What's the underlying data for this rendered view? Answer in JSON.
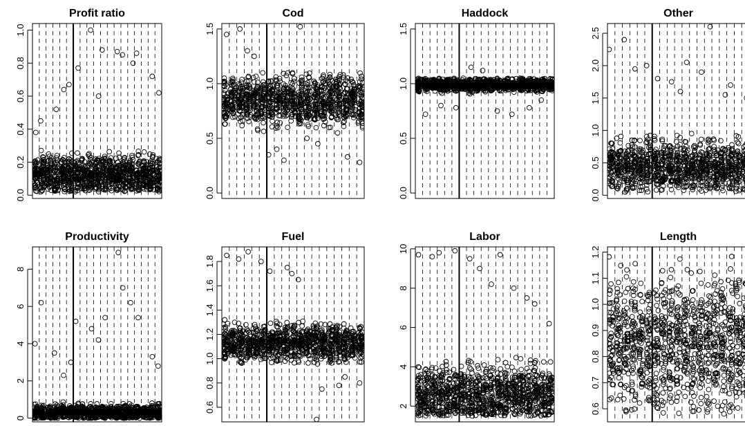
{
  "chart_data": [
    {
      "type": "scatter",
      "title": "Profit ratio",
      "ylim": [
        -0.02,
        1.04
      ],
      "yticks": [
        0.0,
        0.2,
        0.4,
        0.6,
        0.8,
        1.0
      ],
      "ytick_labels": [
        "0.0",
        "0.2",
        "0.4",
        "0.6",
        "0.8",
        "1.0"
      ],
      "x_groups": 19,
      "marker": "open-circle",
      "cloud": {
        "low": 0.02,
        "high": 0.3,
        "center": 0.12,
        "per_group": 55
      },
      "outliers": [
        0.38,
        0.45,
        0.52,
        0.64,
        0.67,
        0.77,
        1.0,
        0.6,
        0.88,
        0.87,
        0.85,
        0.8,
        0.86,
        0.72,
        0.62
      ]
    },
    {
      "type": "scatter",
      "title": "Cod",
      "ylim": [
        -0.05,
        1.55
      ],
      "yticks": [
        0.0,
        0.5,
        1.0,
        1.5
      ],
      "ytick_labels": [
        "0.0",
        "0.5",
        "1.0",
        "1.5"
      ],
      "x_groups": 19,
      "marker": "open-circle",
      "cloud": {
        "low": 0.55,
        "high": 1.1,
        "center": 0.85,
        "per_group": 55
      },
      "outliers": [
        1.45,
        1.5,
        1.3,
        1.25,
        0.35,
        0.4,
        0.3,
        1.52,
        0.5,
        0.45,
        0.6,
        0.55,
        0.33,
        0.28
      ]
    },
    {
      "type": "scatter",
      "title": "Haddock",
      "ylim": [
        -0.05,
        1.55
      ],
      "yticks": [
        0.0,
        0.5,
        1.0,
        1.5
      ],
      "ytick_labels": [
        "0.0",
        "0.5",
        "1.0",
        "1.5"
      ],
      "x_groups": 19,
      "marker": "open-circle",
      "cloud": {
        "low": 0.9,
        "high": 1.05,
        "center": 0.99,
        "per_group": 55
      },
      "outliers": [
        0.72,
        0.8,
        0.78,
        1.15,
        1.12,
        0.75,
        0.72,
        0.78,
        0.85
      ]
    },
    {
      "type": "scatter",
      "title": "Other",
      "ylim": [
        -0.05,
        2.65
      ],
      "yticks": [
        0.0,
        0.5,
        1.0,
        1.5,
        2.0,
        2.5
      ],
      "ytick_labels": [
        "0.0",
        "0.5",
        "1.0",
        "1.5",
        "2.0",
        "2.5"
      ],
      "x_groups": 19,
      "marker": "open-circle",
      "cloud": {
        "low": 0.05,
        "high": 1.0,
        "center": 0.45,
        "per_group": 55
      },
      "outliers": [
        2.25,
        2.4,
        1.95,
        2.0,
        1.8,
        1.75,
        1.6,
        2.05,
        1.9,
        2.6,
        1.55,
        1.7,
        1.5
      ]
    },
    {
      "type": "scatter",
      "title": "Productivity",
      "ylim": [
        -0.2,
        9.2
      ],
      "yticks": [
        0,
        2,
        4,
        6,
        8
      ],
      "ytick_labels": [
        "0",
        "2",
        "4",
        "6",
        "8"
      ],
      "x_groups": 19,
      "marker": "open-circle",
      "cloud": {
        "low": 0.0,
        "high": 1.0,
        "center": 0.3,
        "per_group": 55
      },
      "outliers": [
        4.0,
        6.2,
        3.5,
        2.3,
        3.0,
        5.2,
        4.8,
        4.2,
        5.4,
        8.9,
        7.0,
        6.2,
        5.4,
        3.3,
        2.8
      ]
    },
    {
      "type": "scatter",
      "title": "Fuel",
      "ylim": [
        0.48,
        1.92
      ],
      "yticks": [
        0.6,
        0.8,
        1.0,
        1.2,
        1.4,
        1.6,
        1.8
      ],
      "ytick_labels": [
        "0.6",
        "0.8",
        "1.0",
        "1.2",
        "1.4",
        "1.6",
        "1.8"
      ],
      "x_groups": 19,
      "marker": "open-circle",
      "cloud": {
        "low": 0.95,
        "high": 1.32,
        "center": 1.13,
        "per_group": 55
      },
      "outliers": [
        1.85,
        1.82,
        1.88,
        1.8,
        1.72,
        1.75,
        1.7,
        1.65,
        0.5,
        0.75,
        0.78,
        0.85,
        0.8
      ]
    },
    {
      "type": "scatter",
      "title": "Labor",
      "ylim": [
        1.2,
        10.1
      ],
      "yticks": [
        2,
        4,
        6,
        8,
        10
      ],
      "ytick_labels": [
        "2",
        "4",
        "6",
        "8",
        "10"
      ],
      "x_groups": 19,
      "marker": "open-circle",
      "cloud": {
        "low": 1.5,
        "high": 5.0,
        "center": 2.6,
        "per_group": 55
      },
      "outliers": [
        9.7,
        9.6,
        9.8,
        9.9,
        9.5,
        9.0,
        8.2,
        9.7,
        8.0,
        7.5,
        7.2,
        6.2
      ]
    },
    {
      "type": "scatter",
      "title": "Length",
      "ylim": [
        0.55,
        1.22
      ],
      "yticks": [
        0.6,
        0.7,
        0.8,
        0.9,
        1.0,
        1.1,
        1.2
      ],
      "ytick_labels": [
        "0.6",
        "0.7",
        "0.8",
        "0.9",
        "1.0",
        "1.1",
        "1.2"
      ],
      "x_groups": 19,
      "marker": "open-circle",
      "cloud": {
        "low": 0.58,
        "high": 1.2,
        "center": 0.85,
        "per_group": 55
      },
      "outliers": []
    }
  ]
}
